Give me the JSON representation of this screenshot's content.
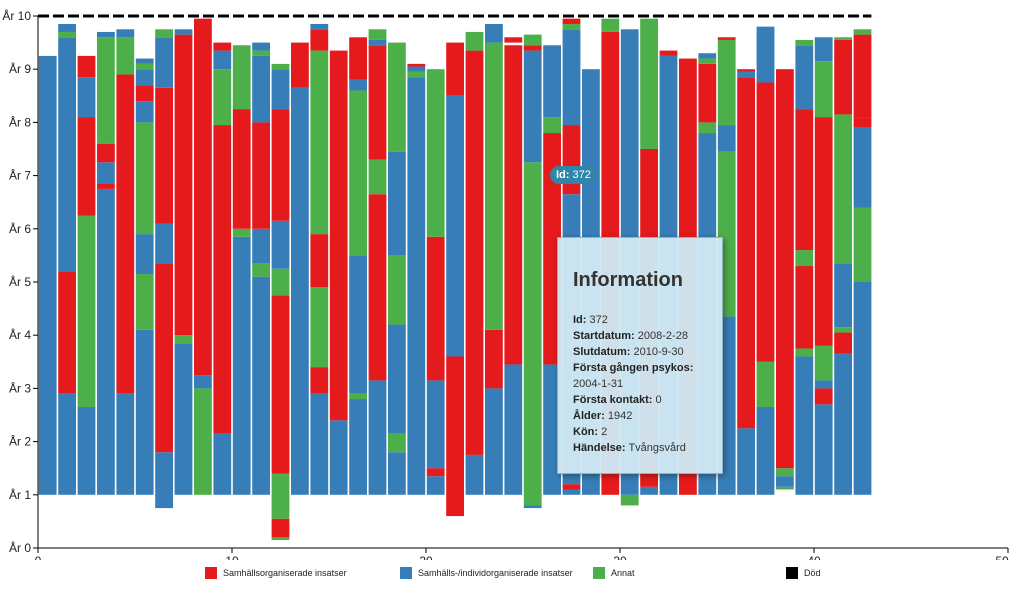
{
  "chart_data": {
    "type": "bar",
    "stacked": true,
    "x_range": [
      0,
      50
    ],
    "x_ticks": [
      0,
      10,
      20,
      30,
      40,
      50
    ],
    "y_range": [
      0,
      10
    ],
    "y_tick_labels": [
      "År 0",
      "År 1",
      "År 2",
      "År 3",
      "År 4",
      "År 5",
      "År 6",
      "År 7",
      "År 8",
      "År 9",
      "År 10"
    ],
    "death_line_y": 10,
    "colors": {
      "red": "#e41a1c",
      "blue": "#377eb8",
      "green": "#4daf4a",
      "black": "#000000"
    },
    "bars": [
      {
        "x": 0.5,
        "segments": [
          [
            "blue",
            1,
            9.25
          ]
        ]
      },
      {
        "x": 1.5,
        "segments": [
          [
            "blue",
            1,
            2.9
          ],
          [
            "red",
            2.9,
            5.2
          ],
          [
            "blue",
            5.2,
            9.6
          ],
          [
            "green",
            9.6,
            9.7
          ],
          [
            "blue",
            9.7,
            9.85
          ]
        ]
      },
      {
        "x": 2.5,
        "segments": [
          [
            "blue",
            1,
            2.65
          ],
          [
            "green",
            2.65,
            6.25
          ],
          [
            "red",
            6.25,
            8.1
          ],
          [
            "blue",
            8.1,
            8.85
          ],
          [
            "red",
            8.85,
            9.25
          ]
        ]
      },
      {
        "x": 3.5,
        "segments": [
          [
            "blue",
            1,
            6.75
          ],
          [
            "red",
            6.75,
            6.85
          ],
          [
            "blue",
            6.85,
            7.25
          ],
          [
            "red",
            7.25,
            7.6
          ],
          [
            "green",
            7.6,
            9.6
          ],
          [
            "blue",
            9.6,
            9.7
          ]
        ]
      },
      {
        "x": 4.5,
        "segments": [
          [
            "blue",
            1,
            2.9
          ],
          [
            "red",
            2.9,
            8.9
          ],
          [
            "green",
            8.9,
            9.6
          ],
          [
            "blue",
            9.6,
            9.75
          ]
        ]
      },
      {
        "x": 5.5,
        "segments": [
          [
            "blue",
            1,
            4.1
          ],
          [
            "green",
            4.1,
            5.15
          ],
          [
            "blue",
            5.15,
            5.9
          ],
          [
            "green",
            5.9,
            8.0
          ],
          [
            "blue",
            8.0,
            8.4
          ],
          [
            "red",
            8.4,
            8.7
          ],
          [
            "blue",
            8.7,
            9.0
          ],
          [
            "green",
            9.0,
            9.1
          ],
          [
            "blue",
            9.1,
            9.2
          ]
        ]
      },
      {
        "x": 6.5,
        "segments": [
          [
            "blue",
            0.75,
            1.8
          ],
          [
            "red",
            1.8,
            5.35
          ],
          [
            "blue",
            5.35,
            6.1
          ],
          [
            "red",
            6.1,
            8.65
          ],
          [
            "blue",
            8.65,
            9.6
          ],
          [
            "green",
            9.6,
            9.75
          ]
        ]
      },
      {
        "x": 7.5,
        "segments": [
          [
            "blue",
            1,
            3.85
          ],
          [
            "green",
            3.85,
            4.0
          ],
          [
            "red",
            4.0,
            9.65
          ],
          [
            "blue",
            9.65,
            9.75
          ]
        ]
      },
      {
        "x": 8.5,
        "segments": [
          [
            "green",
            1,
            3.0
          ],
          [
            "blue",
            3.0,
            3.25
          ],
          [
            "red",
            3.25,
            9.95
          ]
        ]
      },
      {
        "x": 9.5,
        "segments": [
          [
            "blue",
            1,
            2.15
          ],
          [
            "red",
            2.15,
            7.95
          ],
          [
            "green",
            7.95,
            9.0
          ],
          [
            "blue",
            9.0,
            9.35
          ],
          [
            "red",
            9.35,
            9.5
          ]
        ]
      },
      {
        "x": 10.5,
        "segments": [
          [
            "blue",
            1,
            5.85
          ],
          [
            "green",
            5.85,
            6.0
          ],
          [
            "red",
            6.0,
            8.25
          ],
          [
            "green",
            8.25,
            9.45
          ]
        ]
      },
      {
        "x": 11.5,
        "segments": [
          [
            "blue",
            1,
            5.1
          ],
          [
            "green",
            5.1,
            5.35
          ],
          [
            "blue",
            5.35,
            6.0
          ],
          [
            "red",
            6.0,
            8.0
          ],
          [
            "blue",
            8.0,
            9.25
          ],
          [
            "green",
            9.25,
            9.35
          ],
          [
            "blue",
            9.35,
            9.5
          ]
        ]
      },
      {
        "x": 12.5,
        "segments": [
          [
            "green",
            0.15,
            0.2
          ],
          [
            "red",
            0.2,
            0.55
          ],
          [
            "green",
            0.55,
            1.4
          ],
          [
            "red",
            1.4,
            4.75
          ],
          [
            "green",
            4.75,
            5.25
          ],
          [
            "blue",
            5.25,
            6.15
          ],
          [
            "red",
            6.15,
            8.25
          ],
          [
            "blue",
            8.25,
            9.0
          ],
          [
            "green",
            9.0,
            9.1
          ]
        ]
      },
      {
        "x": 13.5,
        "segments": [
          [
            "blue",
            1,
            8.65
          ],
          [
            "red",
            8.65,
            9.5
          ]
        ]
      },
      {
        "x": 14.5,
        "segments": [
          [
            "blue",
            1,
            2.9
          ],
          [
            "red",
            2.9,
            3.4
          ],
          [
            "green",
            3.4,
            4.9
          ],
          [
            "red",
            4.9,
            5.9
          ],
          [
            "green",
            5.9,
            9.35
          ],
          [
            "red",
            9.35,
            9.75
          ],
          [
            "blue",
            9.75,
            9.85
          ]
        ]
      },
      {
        "x": 15.5,
        "segments": [
          [
            "blue",
            1,
            2.4
          ],
          [
            "red",
            2.4,
            9.35
          ]
        ]
      },
      {
        "x": 16.5,
        "segments": [
          [
            "blue",
            1,
            2.8
          ],
          [
            "green",
            2.8,
            2.9
          ],
          [
            "blue",
            2.9,
            5.5
          ],
          [
            "green",
            5.5,
            8.6
          ],
          [
            "blue",
            8.6,
            8.8
          ],
          [
            "red",
            8.8,
            9.6
          ]
        ]
      },
      {
        "x": 17.5,
        "segments": [
          [
            "blue",
            1,
            3.15
          ],
          [
            "red",
            3.15,
            6.65
          ],
          [
            "green",
            6.65,
            7.3
          ],
          [
            "red",
            7.3,
            9.45
          ],
          [
            "blue",
            9.45,
            9.55
          ],
          [
            "green",
            9.55,
            9.75
          ]
        ]
      },
      {
        "x": 18.5,
        "segments": [
          [
            "blue",
            1,
            1.8
          ],
          [
            "green",
            1.8,
            2.15
          ],
          [
            "blue",
            2.15,
            4.2
          ],
          [
            "green",
            4.2,
            5.5
          ],
          [
            "blue",
            5.5,
            7.45
          ],
          [
            "green",
            7.45,
            9.5
          ]
        ]
      },
      {
        "x": 19.5,
        "segments": [
          [
            "blue",
            1,
            8.85
          ],
          [
            "green",
            8.85,
            8.95
          ],
          [
            "blue",
            8.95,
            9.05
          ],
          [
            "red",
            9.05,
            9.1
          ]
        ]
      },
      {
        "x": 20.5,
        "segments": [
          [
            "blue",
            1,
            1.35
          ],
          [
            "red",
            1.35,
            1.5
          ],
          [
            "blue",
            1.5,
            3.15
          ],
          [
            "red",
            3.15,
            5.85
          ],
          [
            "green",
            5.85,
            9.0
          ]
        ]
      },
      {
        "x": 21.5,
        "segments": [
          [
            "red",
            0.6,
            3.6
          ],
          [
            "blue",
            3.6,
            8.5
          ],
          [
            "red",
            8.5,
            9.5
          ]
        ]
      },
      {
        "x": 22.5,
        "segments": [
          [
            "blue",
            1,
            1.75
          ],
          [
            "red",
            1.75,
            9.35
          ],
          [
            "green",
            9.35,
            9.7
          ]
        ]
      },
      {
        "x": 23.5,
        "segments": [
          [
            "blue",
            1,
            3.0
          ],
          [
            "red",
            3.0,
            4.1
          ],
          [
            "green",
            4.1,
            9.5
          ],
          [
            "blue",
            9.5,
            9.85
          ]
        ]
      },
      {
        "x": 24.5,
        "segments": [
          [
            "blue",
            1,
            3.45
          ],
          [
            "red",
            3.45,
            9.45
          ],
          [
            "red",
            9.5,
            9.6
          ]
        ]
      },
      {
        "x": 25.5,
        "segments": [
          [
            "blue",
            0.75,
            0.8
          ],
          [
            "green",
            0.8,
            7.25
          ],
          [
            "blue",
            7.25,
            9.35
          ],
          [
            "red",
            9.35,
            9.45
          ],
          [
            "green",
            9.45,
            9.65
          ]
        ]
      },
      {
        "x": 26.5,
        "segments": [
          [
            "blue",
            1,
            3.45
          ],
          [
            "red",
            3.45,
            7.8
          ],
          [
            "green",
            7.8,
            8.1
          ],
          [
            "blue",
            8.1,
            9.45
          ]
        ]
      },
      {
        "x": 27.5,
        "segments": [
          [
            "blue",
            1,
            1.1
          ],
          [
            "red",
            1.1,
            1.2
          ],
          [
            "blue",
            1.2,
            6.65
          ],
          [
            "red",
            6.65,
            7.95
          ],
          [
            "blue",
            7.95,
            9.75
          ],
          [
            "green",
            9.75,
            9.85
          ],
          [
            "red",
            9.85,
            9.95
          ]
        ]
      },
      {
        "x": 28.5,
        "segments": [
          [
            "blue",
            1,
            9.0
          ]
        ]
      },
      {
        "x": 29.5,
        "segments": [
          [
            "red",
            1,
            9.7
          ],
          [
            "green",
            9.7,
            9.95
          ]
        ]
      },
      {
        "x": 30.5,
        "segments": [
          [
            "green",
            0.8,
            1.0
          ],
          [
            "blue",
            1.0,
            9.75
          ]
        ]
      },
      {
        "x": 31.5,
        "segments": [
          [
            "blue",
            1,
            1.15
          ],
          [
            "red",
            1.15,
            7.5
          ],
          [
            "green",
            7.5,
            9.95
          ]
        ]
      },
      {
        "x": 32.5,
        "segments": [
          [
            "blue",
            1,
            9.25
          ],
          [
            "red",
            9.25,
            9.35
          ]
        ]
      },
      {
        "x": 33.5,
        "segments": [
          [
            "red",
            1,
            9.2
          ]
        ]
      },
      {
        "x": 34.5,
        "segments": [
          [
            "blue",
            1,
            7.8
          ],
          [
            "green",
            7.8,
            8.0
          ],
          [
            "red",
            8.0,
            9.1
          ],
          [
            "green",
            9.1,
            9.2
          ],
          [
            "blue",
            9.2,
            9.3
          ]
        ]
      },
      {
        "x": 35.5,
        "segments": [
          [
            "blue",
            1,
            4.35
          ],
          [
            "green",
            4.35,
            7.45
          ],
          [
            "blue",
            7.45,
            7.95
          ],
          [
            "green",
            7.95,
            9.55
          ],
          [
            "red",
            9.55,
            9.6
          ]
        ]
      },
      {
        "x": 36.5,
        "segments": [
          [
            "blue",
            1,
            2.25
          ],
          [
            "red",
            2.25,
            8.85
          ],
          [
            "blue",
            8.85,
            8.95
          ],
          [
            "red",
            8.95,
            9.0
          ]
        ]
      },
      {
        "x": 37.5,
        "segments": [
          [
            "blue",
            1,
            2.65
          ],
          [
            "green",
            2.65,
            3.5
          ],
          [
            "red",
            3.5,
            8.75
          ],
          [
            "blue",
            8.75,
            9.8
          ]
        ]
      },
      {
        "x": 38.5,
        "segments": [
          [
            "green",
            1.1,
            1.15
          ],
          [
            "blue",
            1.15,
            1.35
          ],
          [
            "green",
            1.35,
            1.5
          ],
          [
            "red",
            1.5,
            9.0
          ]
        ]
      },
      {
        "x": 39.5,
        "segments": [
          [
            "blue",
            1,
            3.6
          ],
          [
            "green",
            3.6,
            3.75
          ],
          [
            "red",
            3.75,
            5.3
          ],
          [
            "green",
            5.3,
            5.6
          ],
          [
            "red",
            5.6,
            8.25
          ],
          [
            "blue",
            8.25,
            9.45
          ],
          [
            "green",
            9.45,
            9.55
          ]
        ]
      },
      {
        "x": 40.5,
        "segments": [
          [
            "blue",
            1,
            2.7
          ],
          [
            "red",
            2.7,
            3.0
          ],
          [
            "blue",
            3.0,
            3.15
          ],
          [
            "green",
            3.15,
            3.8
          ],
          [
            "red",
            3.8,
            8.1
          ],
          [
            "green",
            8.1,
            9.15
          ],
          [
            "blue",
            9.15,
            9.6
          ]
        ]
      },
      {
        "x": 41.5,
        "segments": [
          [
            "blue",
            1,
            3.65
          ],
          [
            "red",
            3.65,
            4.05
          ],
          [
            "green",
            4.05,
            4.15
          ],
          [
            "blue",
            4.15,
            5.35
          ],
          [
            "green",
            5.35,
            8.15
          ],
          [
            "red",
            8.15,
            9.55
          ],
          [
            "green",
            9.55,
            9.6
          ]
        ]
      },
      {
        "x": 42.5,
        "segments": [
          [
            "blue",
            1,
            5.0
          ],
          [
            "green",
            5.0,
            6.4
          ],
          [
            "blue",
            6.4,
            7.9
          ],
          [
            "red",
            7.9,
            8.1
          ],
          [
            "red",
            8.1,
            9.65
          ],
          [
            "green",
            9.65,
            9.75
          ]
        ]
      }
    ]
  },
  "legend": [
    {
      "label": "Samhällsorganiserade insatser",
      "color": "#e41a1c"
    },
    {
      "label": "Samhälls-/individorganiserade insatser",
      "color": "#377eb8"
    },
    {
      "label": "Annat",
      "color": "#4daf4a"
    },
    {
      "label": "Död",
      "color": "#000000"
    }
  ],
  "badge": {
    "label": "Id:",
    "value": "372"
  },
  "info": {
    "title": "Information",
    "rows": [
      {
        "label": "Id:",
        "value": "372"
      },
      {
        "label": "Startdatum:",
        "value": "2008-2-28"
      },
      {
        "label": "Slutdatum:",
        "value": "2010-9-30"
      },
      {
        "label": "Första gången psykos:",
        "value": "2004-1-31"
      },
      {
        "label": "Första kontakt:",
        "value": "0"
      },
      {
        "label": "Ålder:",
        "value": "1942"
      },
      {
        "label": "Kön:",
        "value": "2"
      },
      {
        "label": "Händelse:",
        "value": "Tvångsvård"
      }
    ]
  }
}
